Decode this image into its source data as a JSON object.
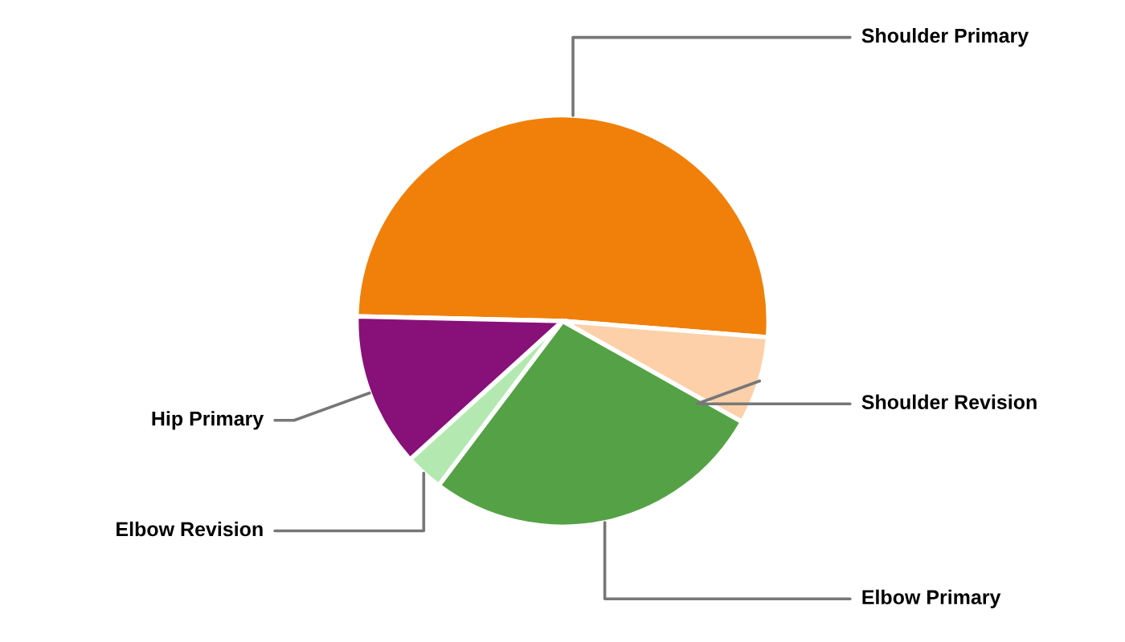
{
  "chart_data": {
    "type": "pie",
    "categories": [
      "Shoulder Primary",
      "Shoulder Revision",
      "Elbow Primary",
      "Elbow Revision",
      "Hip Primary"
    ],
    "values": [
      50.9,
      6.9,
      27.1,
      3.0,
      12.1
    ],
    "colors": [
      "#f0800a",
      "#fdd0a9",
      "#54a245",
      "#b3e9b0",
      "#881079"
    ],
    "legend": false
  }
}
